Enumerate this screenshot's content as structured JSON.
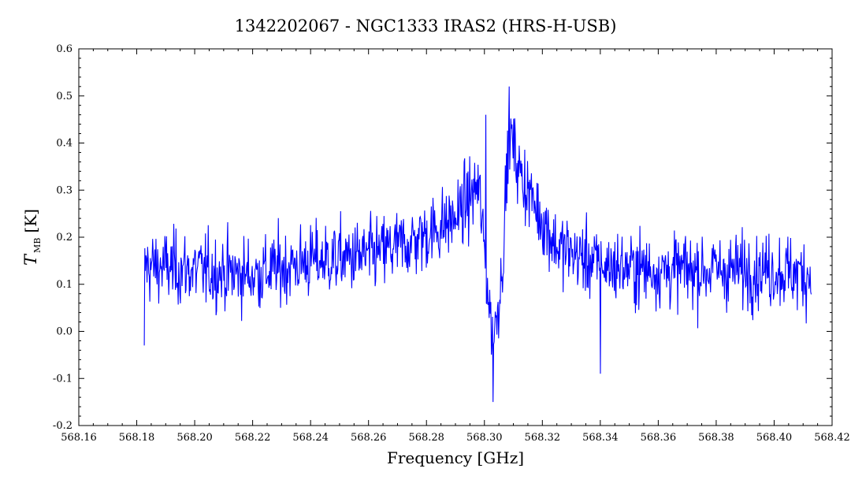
{
  "chart_data": {
    "type": "line",
    "title": "1342202067 - NGC1333 IRAS2 (HRS-H-USB)",
    "xlabel": "Frequency [GHz]",
    "ylabel": {
      "symbol": "T",
      "subscript": "MB",
      "unit": "[K]"
    },
    "xlim": [
      568.16,
      568.42
    ],
    "ylim": [
      -0.2,
      0.6
    ],
    "xticks": [
      "568.16",
      "568.18",
      "568.20",
      "568.22",
      "568.24",
      "568.26",
      "568.28",
      "568.30",
      "568.32",
      "568.34",
      "568.36",
      "568.38",
      "568.40",
      "568.42"
    ],
    "yticks": [
      "-0.2",
      "-0.1",
      "0.0",
      "0.1",
      "0.2",
      "0.3",
      "0.4",
      "0.5",
      "0.6"
    ],
    "line_color": "#0000ff",
    "grid": false,
    "series": [
      {
        "x_start": 568.1826,
        "x_end": 568.4128,
        "points_approx": 1200,
        "baseline": [
          [
            568.1826,
            0.14
          ],
          [
            568.2,
            0.13
          ],
          [
            568.22,
            0.12
          ],
          [
            568.24,
            0.15
          ],
          [
            568.26,
            0.16
          ],
          [
            568.275,
            0.19
          ],
          [
            568.29,
            0.24
          ],
          [
            568.298,
            0.31
          ],
          [
            568.301,
            0.1
          ],
          [
            568.303,
            -0.02
          ],
          [
            568.306,
            0.12
          ],
          [
            568.3085,
            0.43
          ],
          [
            568.312,
            0.34
          ],
          [
            568.318,
            0.26
          ],
          [
            568.325,
            0.18
          ],
          [
            568.34,
            0.14
          ],
          [
            568.36,
            0.13
          ],
          [
            568.38,
            0.13
          ],
          [
            568.4,
            0.13
          ],
          [
            568.4128,
            0.12
          ]
        ],
        "extremes": [
          {
            "x": 568.1826,
            "y": -0.03
          },
          {
            "x": 568.3005,
            "y": 0.46
          },
          {
            "x": 568.303,
            "y": -0.15
          },
          {
            "x": 568.3085,
            "y": 0.52
          },
          {
            "x": 568.34,
            "y": -0.09
          }
        ]
      }
    ]
  }
}
